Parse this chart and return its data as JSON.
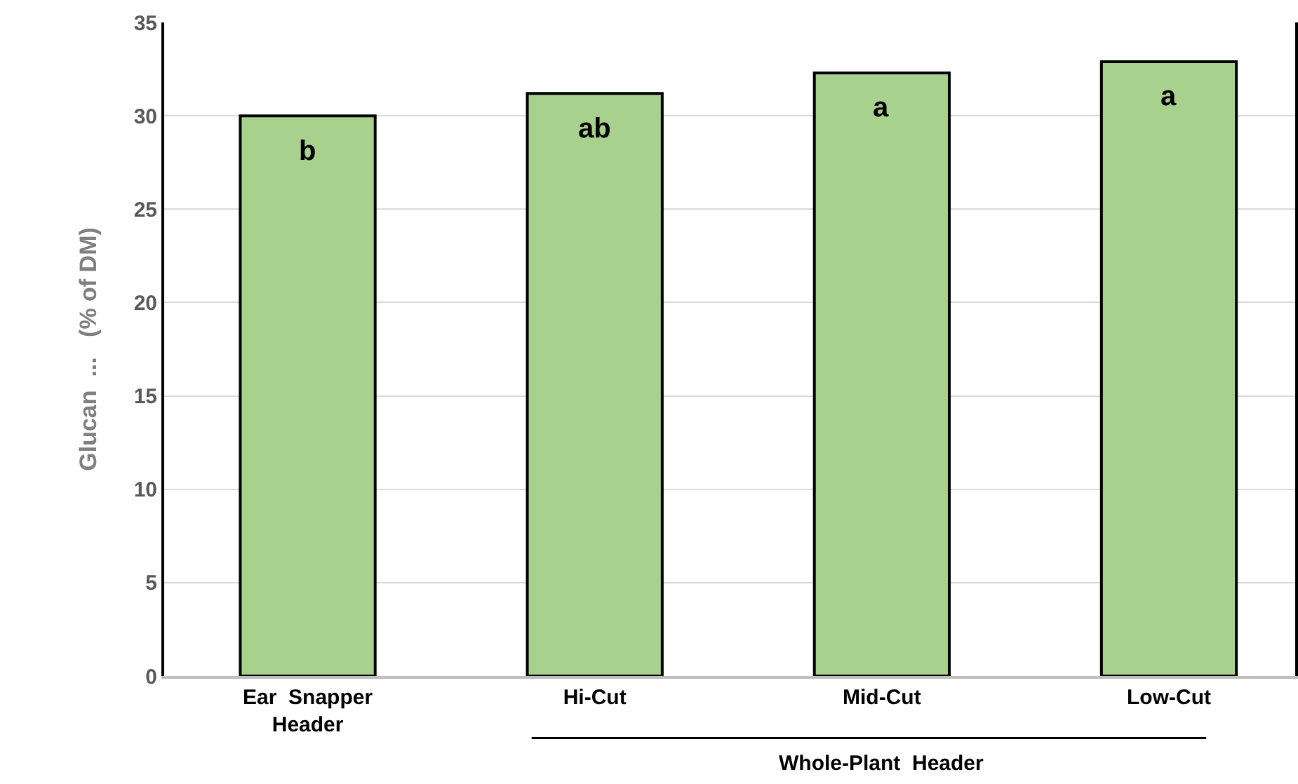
{
  "chart_data": {
    "type": "bar",
    "ylabel": "Glucan  ...   (% of DM)",
    "categories": [
      "Ear  Snapper\nHeader",
      "Hi-Cut",
      "Mid-Cut",
      "Low-Cut"
    ],
    "values": [
      30.0,
      31.2,
      32.3,
      32.9
    ],
    "color": "#a9d18e",
    "ylim": [
      0,
      35
    ],
    "yticks": [
      0,
      5,
      10,
      15,
      20,
      25,
      30,
      35
    ],
    "grid": "y",
    "annotations": [
      {
        "text": "b",
        "x": "Ear  Snapper\nHeader",
        "y": 30.0
      },
      {
        "text": "ab",
        "x": "Hi-Cut",
        "y": 31.2
      },
      {
        "text": "a",
        "x": "Mid-Cut",
        "y": 32.3
      },
      {
        "text": "a",
        "x": "Low-Cut",
        "y": 32.9
      },
      "Whole-Plant  Header"
    ]
  }
}
